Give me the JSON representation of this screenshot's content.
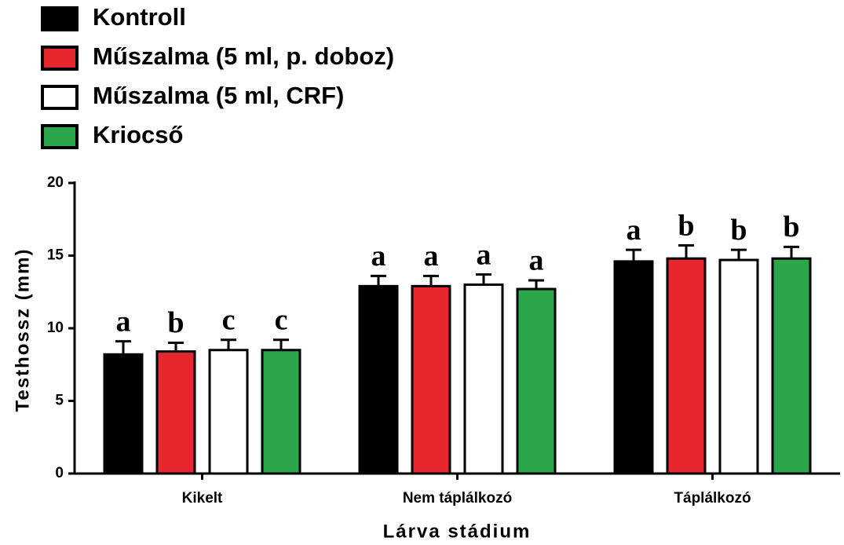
{
  "chart_data": {
    "type": "bar",
    "x_label": "Lárva stádium",
    "y_label": "Testhossz (mm)",
    "categories": [
      "Kikelt",
      "Nem táplálkozó",
      "Táplálkozó"
    ],
    "series": [
      {
        "name": "Kontroll",
        "color": "#000000",
        "values": [
          8.2,
          12.9,
          14.6
        ],
        "errors": [
          0.9,
          0.7,
          0.8
        ],
        "letters": [
          "a",
          "a",
          "a"
        ]
      },
      {
        "name": "Műszalma (5 ml, p. doboz)",
        "color": "#e8262d",
        "values": [
          8.4,
          12.9,
          14.8
        ],
        "errors": [
          0.6,
          0.7,
          0.9
        ],
        "letters": [
          "b",
          "a",
          "b"
        ]
      },
      {
        "name": "Műszalma (5 ml, CRF)",
        "color": "#ffffff",
        "values": [
          8.5,
          13.0,
          14.7
        ],
        "errors": [
          0.7,
          0.7,
          0.7
        ],
        "letters": [
          "c",
          "a",
          "b"
        ]
      },
      {
        "name": "Kriocső",
        "color": "#2ca64a",
        "values": [
          8.5,
          12.7,
          14.8
        ],
        "errors": [
          0.7,
          0.6,
          0.8
        ],
        "letters": [
          "c",
          "a",
          "b"
        ]
      }
    ],
    "ylim": [
      0,
      20
    ],
    "yticks": [
      0,
      5,
      10,
      15,
      20
    ]
  }
}
